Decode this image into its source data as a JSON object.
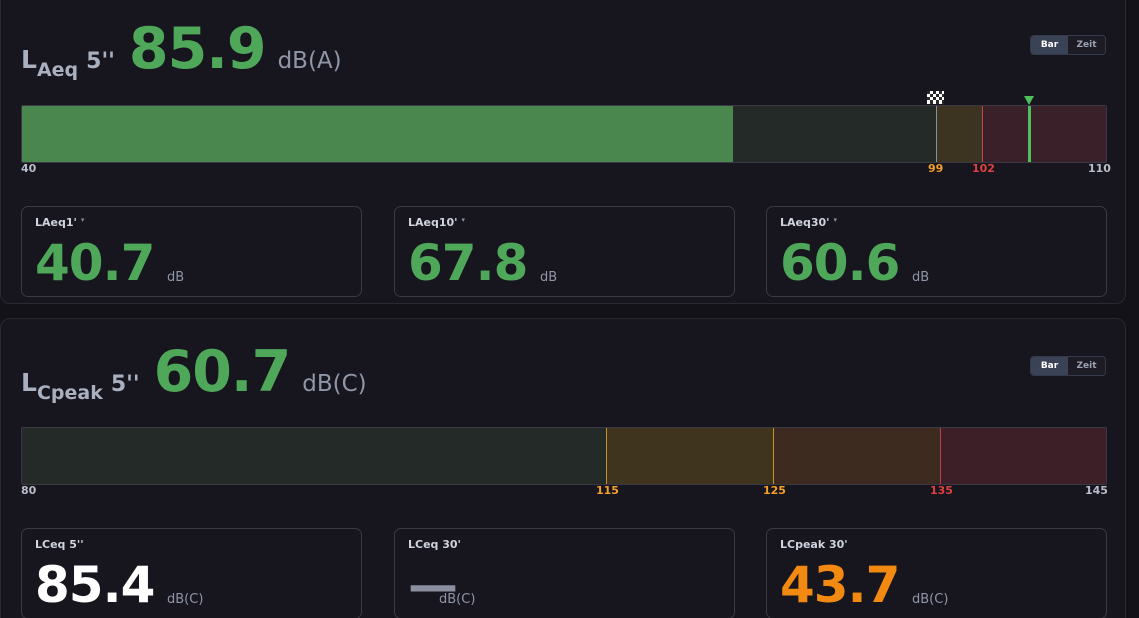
{
  "panel1": {
    "title": {
      "letter": "L",
      "sub": "Aeq",
      "duration": "5''",
      "value": "85.9",
      "unit": "dB(A)"
    },
    "toggle": {
      "bar": "Bar",
      "zeit": "Zeit",
      "selected": "Bar"
    },
    "bar": {
      "min": 40,
      "max": 110,
      "current": 85.9,
      "limit": 104.8,
      "best": 99,
      "ticks": {
        "min": "40",
        "warn": "99",
        "alarm": "102",
        "max": "110"
      }
    },
    "cards": [
      {
        "label": "LAeq1'",
        "value": "40.7",
        "unit": "dB"
      },
      {
        "label": "LAeq10'",
        "value": "67.8",
        "unit": "dB"
      },
      {
        "label": "LAeq30'",
        "value": "60.6",
        "unit": "dB"
      }
    ]
  },
  "panel2": {
    "title": {
      "letter": "L",
      "sub": "Cpeak",
      "duration": "5''",
      "value": "60.7",
      "unit": "dB(C)"
    },
    "toggle": {
      "bar": "Bar",
      "zeit": "Zeit",
      "selected": "Bar"
    },
    "bar": {
      "min": 80,
      "max": 145,
      "current": 60.7,
      "ticks": {
        "min": "80",
        "t1": "115",
        "t2": "125",
        "t3": "135",
        "max": "145"
      }
    },
    "cards": [
      {
        "label": "LCeq 5''",
        "value": "85.4",
        "unit": "dB(C)"
      },
      {
        "label": "LCeq 30'",
        "value": "—",
        "unit": "dB(C)"
      },
      {
        "label": "LCpeak 30'",
        "value": "43.7",
        "unit": "dB(C)"
      }
    ]
  },
  "colors": {
    "green": "#4fa85a",
    "orange": "#f2a02a",
    "red": "#e04040",
    "bar_bg": "#232a28",
    "panel_bg": "#17151d"
  }
}
